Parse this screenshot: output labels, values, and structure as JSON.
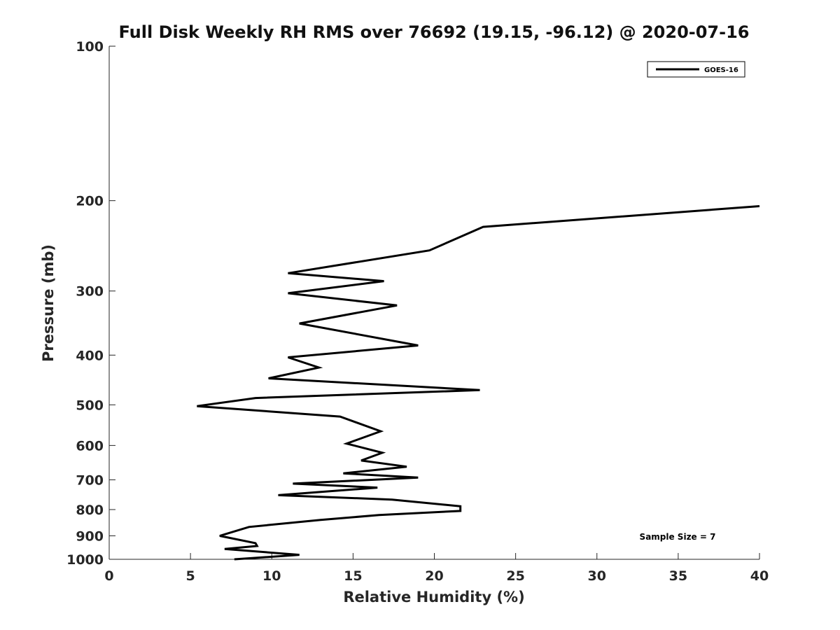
{
  "chart_data": {
    "type": "line",
    "title": "Full Disk Weekly RH RMS over 76692 (19.15, -96.12) @ 2020-07-16",
    "xlabel": "Relative Humidity (%)",
    "ylabel": "Pressure (mb)",
    "xlim": [
      0,
      40
    ],
    "ylim": [
      1000,
      100
    ],
    "yscale": "log",
    "x_ticks": [
      0,
      5,
      10,
      15,
      20,
      25,
      30,
      35,
      40
    ],
    "y_ticks": [
      100,
      200,
      300,
      400,
      500,
      600,
      700,
      800,
      900,
      1000
    ],
    "grid": false,
    "legend_position": "top-right",
    "annotation": "Sample Size = 7",
    "series": [
      {
        "name": "GOES-16",
        "color": "#000000",
        "points": [
          {
            "x": 40.0,
            "y": 205
          },
          {
            "x": 23.0,
            "y": 225
          },
          {
            "x": 19.7,
            "y": 250
          },
          {
            "x": 11.0,
            "y": 277
          },
          {
            "x": 16.9,
            "y": 287
          },
          {
            "x": 11.0,
            "y": 303
          },
          {
            "x": 17.7,
            "y": 320
          },
          {
            "x": 11.7,
            "y": 347
          },
          {
            "x": 19.0,
            "y": 383
          },
          {
            "x": 11.0,
            "y": 404
          },
          {
            "x": 12.9,
            "y": 423
          },
          {
            "x": 9.8,
            "y": 444
          },
          {
            "x": 22.8,
            "y": 468
          },
          {
            "x": 9.0,
            "y": 485
          },
          {
            "x": 5.4,
            "y": 503
          },
          {
            "x": 14.2,
            "y": 527
          },
          {
            "x": 16.7,
            "y": 563
          },
          {
            "x": 14.6,
            "y": 595
          },
          {
            "x": 16.8,
            "y": 620
          },
          {
            "x": 15.5,
            "y": 642
          },
          {
            "x": 18.3,
            "y": 660
          },
          {
            "x": 14.4,
            "y": 680
          },
          {
            "x": 19.0,
            "y": 693
          },
          {
            "x": 11.3,
            "y": 712
          },
          {
            "x": 16.5,
            "y": 725
          },
          {
            "x": 10.4,
            "y": 750
          },
          {
            "x": 17.4,
            "y": 765
          },
          {
            "x": 21.6,
            "y": 788
          },
          {
            "x": 21.6,
            "y": 805
          },
          {
            "x": 16.6,
            "y": 820
          },
          {
            "x": 13.0,
            "y": 838
          },
          {
            "x": 8.6,
            "y": 865
          },
          {
            "x": 6.8,
            "y": 900
          },
          {
            "x": 9.0,
            "y": 930
          },
          {
            "x": 9.1,
            "y": 942
          },
          {
            "x": 7.1,
            "y": 955
          },
          {
            "x": 11.7,
            "y": 980
          },
          {
            "x": 7.7,
            "y": 1000
          }
        ]
      }
    ]
  }
}
